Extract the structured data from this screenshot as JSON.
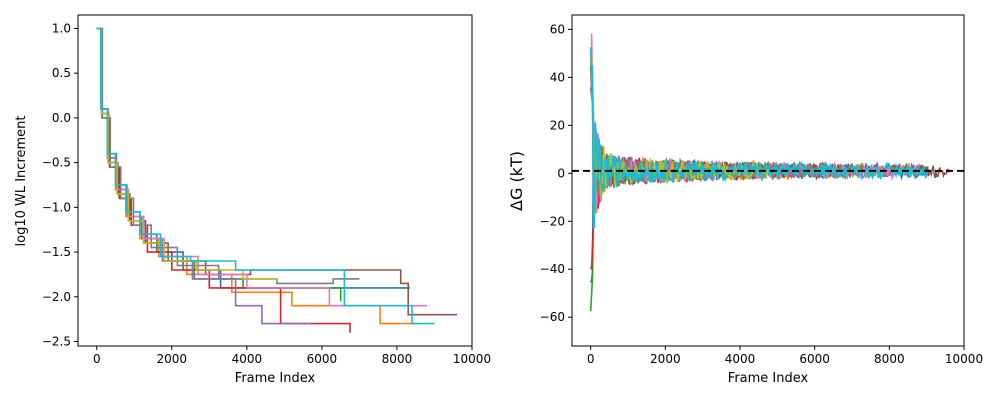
{
  "chart_data": [
    {
      "type": "line",
      "xlabel": "Frame Index",
      "ylabel": "log10 WL Increment",
      "xlim": [
        -500,
        10000
      ],
      "ylim": [
        -2.55,
        1.15
      ],
      "xticks": [
        0,
        2000,
        4000,
        6000,
        8000,
        10000
      ],
      "yticks": [
        -2.5,
        -2.0,
        -1.5,
        -1.0,
        -0.5,
        0.0,
        0.5,
        1.0
      ],
      "ytick_labels": [
        "−2.5",
        "−2.0",
        "−1.5",
        "−1.0",
        "−0.5",
        "0.0",
        "0.5",
        "1.0"
      ],
      "grid": false,
      "series": [
        {
          "color": "#1f77b4",
          "x": [
            0,
            120,
            300,
            520,
            800,
            1150,
            1600,
            2300,
            3300,
            8350
          ],
          "y": [
            1.0,
            0.1,
            -0.4,
            -0.75,
            -1.05,
            -1.3,
            -1.5,
            -1.7,
            -1.9,
            -1.9
          ]
        },
        {
          "color": "#ff7f0e",
          "x": [
            0,
            110,
            280,
            500,
            780,
            1150,
            1650,
            2400,
            3600,
            5200,
            7550,
            8600
          ],
          "y": [
            1.0,
            0.1,
            -0.45,
            -0.8,
            -1.1,
            -1.35,
            -1.55,
            -1.75,
            -1.95,
            -2.1,
            -2.3,
            -2.3
          ]
        },
        {
          "color": "#2ca02c",
          "x": [
            0,
            130,
            320,
            560,
            860,
            1250,
            1800,
            2600,
            3900,
            6500,
            6500
          ],
          "y": [
            1.0,
            0.05,
            -0.5,
            -0.85,
            -1.15,
            -1.4,
            -1.6,
            -1.8,
            -1.9,
            -2.05,
            -2.05
          ]
        },
        {
          "color": "#d62728",
          "x": [
            0,
            140,
            340,
            600,
            920,
            1350,
            2000,
            3000,
            4900,
            6750
          ],
          "y": [
            1.0,
            0.0,
            -0.55,
            -0.9,
            -1.2,
            -1.5,
            -1.7,
            -1.9,
            -2.3,
            -2.4
          ]
        },
        {
          "color": "#9467bd",
          "x": [
            0,
            110,
            290,
            520,
            820,
            1200,
            1750,
            2550,
            3700,
            4400,
            5700
          ],
          "y": [
            1.0,
            0.1,
            -0.45,
            -0.8,
            -1.1,
            -1.35,
            -1.6,
            -1.8,
            -2.1,
            -2.3,
            -2.3
          ]
        },
        {
          "color": "#8c564b",
          "x": [
            0,
            130,
            310,
            560,
            880,
            1300,
            1900,
            2900,
            4100,
            8100,
            8300,
            9600
          ],
          "y": [
            1.0,
            0.05,
            -0.5,
            -0.85,
            -1.15,
            -1.4,
            -1.6,
            -1.75,
            -1.7,
            -1.85,
            -2.2,
            -2.2
          ]
        },
        {
          "color": "#e377c2",
          "x": [
            0,
            120,
            300,
            540,
            840,
            1250,
            1800,
            2700,
            4000,
            6200,
            8800
          ],
          "y": [
            1.0,
            0.05,
            -0.5,
            -0.8,
            -1.1,
            -1.35,
            -1.55,
            -1.75,
            -1.9,
            -2.1,
            -2.1
          ]
        },
        {
          "color": "#7f7f7f",
          "x": [
            0,
            150,
            360,
            640,
            980,
            1450,
            2150,
            3250,
            4800,
            6300,
            7000
          ],
          "y": [
            1.0,
            0.0,
            -0.55,
            -0.9,
            -1.2,
            -1.45,
            -1.65,
            -1.8,
            -1.85,
            -1.8,
            -1.8
          ]
        },
        {
          "color": "#bcbd22",
          "x": [
            0,
            120,
            300,
            540,
            840,
            1240,
            1800,
            2650,
            3900,
            4800
          ],
          "y": [
            1.0,
            0.05,
            -0.5,
            -0.85,
            -1.15,
            -1.4,
            -1.6,
            -1.7,
            -1.8,
            -1.8
          ]
        },
        {
          "color": "#17becf",
          "x": [
            0,
            110,
            280,
            500,
            780,
            1150,
            1700,
            2500,
            3700,
            6600,
            8400,
            9000
          ],
          "y": [
            1.0,
            0.1,
            -0.4,
            -0.75,
            -1.05,
            -1.3,
            -1.55,
            -1.6,
            -1.7,
            -2.1,
            -2.3,
            -2.3
          ]
        }
      ]
    },
    {
      "type": "line",
      "xlabel": "Frame Index",
      "ylabel": "ΔG (kT)",
      "xlim": [
        -500,
        10000
      ],
      "ylim": [
        -72,
        66
      ],
      "xticks": [
        0,
        2000,
        4000,
        6000,
        8000,
        10000
      ],
      "yticks": [
        -60,
        -40,
        -20,
        0,
        20,
        40,
        60
      ],
      "ytick_labels": [
        "−60",
        "−40",
        "−20",
        "0",
        "20",
        "40",
        "60"
      ],
      "reference_line": {
        "y": 1,
        "style": "dashed",
        "color": "#000000"
      },
      "grid": false,
      "series": [
        {
          "color": "#1f77b4",
          "n_frames": 9000,
          "amplitude": 50,
          "sign": -1
        },
        {
          "color": "#ff7f0e",
          "n_frames": 8600,
          "amplitude": 45,
          "sign": 1
        },
        {
          "color": "#2ca02c",
          "n_frames": 6500,
          "amplitude": 66,
          "sign": -1
        },
        {
          "color": "#d62728",
          "n_frames": 6750,
          "amplitude": 44,
          "sign": -1
        },
        {
          "color": "#9467bd",
          "n_frames": 5700,
          "amplitude": 40,
          "sign": 1
        },
        {
          "color": "#8c564b",
          "n_frames": 9600,
          "amplitude": 42,
          "sign": 1
        },
        {
          "color": "#e377c2",
          "n_frames": 8800,
          "amplitude": 60,
          "sign": 1
        },
        {
          "color": "#7f7f7f",
          "n_frames": 7000,
          "amplitude": 48,
          "sign": 1
        },
        {
          "color": "#bcbd22",
          "n_frames": 4800,
          "amplitude": 45,
          "sign": 1
        },
        {
          "color": "#17becf",
          "n_frames": 9000,
          "amplitude": 50,
          "sign": 1
        }
      ]
    }
  ]
}
